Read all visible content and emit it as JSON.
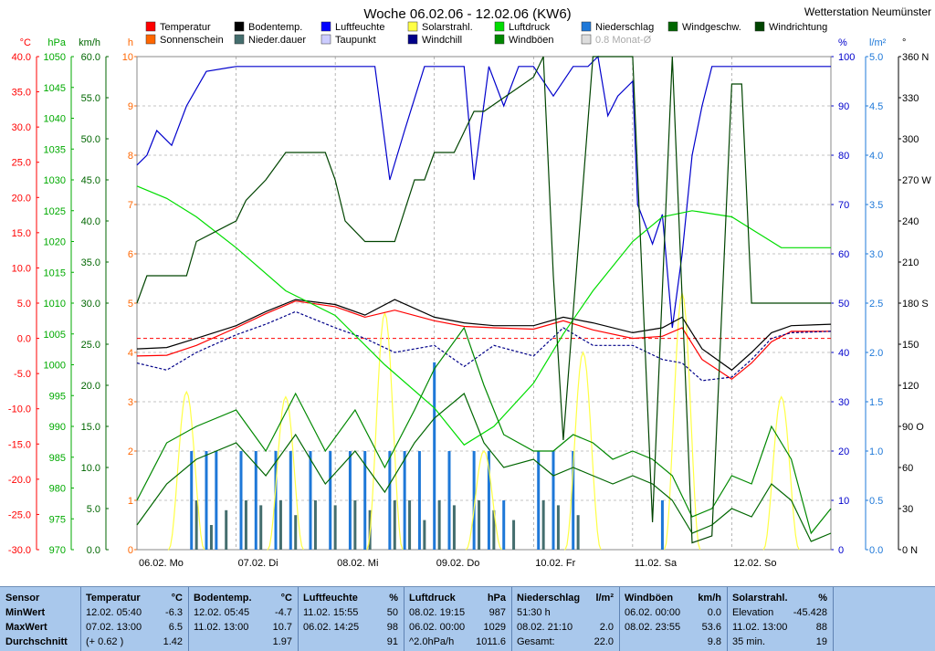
{
  "title": "Woche 06.02.06 - 12.02.06 (KW6)",
  "station": "Wetterstation Neumünster",
  "legend": [
    {
      "label": "Temperatur",
      "color": "#ff0000"
    },
    {
      "label": "Bodentemp.",
      "color": "#000000"
    },
    {
      "label": "Luftfeuchte",
      "color": "#0000ff"
    },
    {
      "label": "Solarstrahl.",
      "color": "#ffff44"
    },
    {
      "label": "Luftdruck",
      "color": "#00dd00"
    },
    {
      "label": "Niederschlag",
      "color": "#1e78d8"
    },
    {
      "label": "Windgeschw.",
      "color": "#006600"
    },
    {
      "label": "Windrichtung",
      "color": "#004400"
    },
    {
      "label": "Sonnenschein",
      "color": "#ff6600"
    },
    {
      "label": "Nieder.dauer",
      "color": "#446e6e"
    },
    {
      "label": "Taupunkt",
      "color": "#ccccff"
    },
    {
      "label": "Windchill",
      "color": "#000088"
    },
    {
      "label": "Windböen",
      "color": "#008800"
    },
    {
      "label": "0.8 Monat-Ø",
      "color": "#dddddd"
    }
  ],
  "axes": {
    "temp": {
      "unit": "°C",
      "color": "#ff0000",
      "ticks": [
        "40.0",
        "35.0",
        "30.0",
        "25.0",
        "20.0",
        "15.0",
        "10.0",
        "5.0",
        "0.0",
        "-5.0",
        "-10.0",
        "-15.0",
        "-20.0",
        "-25.0",
        "-30.0"
      ]
    },
    "pressure": {
      "unit": "hPa",
      "color": "#00aa00",
      "ticks": [
        "1050",
        "1045",
        "1040",
        "1035",
        "1030",
        "1025",
        "1020",
        "1015",
        "1010",
        "1005",
        "1000",
        "995",
        "990",
        "985",
        "980",
        "975",
        "970"
      ]
    },
    "wind": {
      "unit": "km/h",
      "color": "#006600",
      "ticks": [
        "60.0",
        "55.0",
        "50.0",
        "45.0",
        "40.0",
        "35.0",
        "30.0",
        "25.0",
        "20.0",
        "15.0",
        "10.0",
        "5.0",
        "0.0"
      ]
    },
    "hours": {
      "unit": "h",
      "color": "#ff6600",
      "ticks": [
        "10",
        "9",
        "8",
        "7",
        "6",
        "5",
        "4",
        "3",
        "2",
        "1",
        "0"
      ]
    },
    "humidity": {
      "unit": "%",
      "color": "#0000cc",
      "ticks": [
        "100",
        "90",
        "80",
        "70",
        "60",
        "50",
        "40",
        "30",
        "20",
        "10",
        "0"
      ]
    },
    "rain": {
      "unit": "l/m²",
      "color": "#1e78d8",
      "ticks": [
        "5.0",
        "4.5",
        "4.0",
        "3.5",
        "3.0",
        "2.5",
        "2.0",
        "1.5",
        "1.0",
        "0.5",
        "0.0"
      ]
    },
    "direction": {
      "unit": "°",
      "color": "#000000",
      "ticks": [
        "360 N",
        "330",
        "300",
        "270 W",
        "240",
        "210",
        "180 S",
        "150",
        "120",
        "90 O",
        "60",
        "30",
        "0 N"
      ]
    }
  },
  "day_labels": [
    "06.02. Mo",
    "07.02. Di",
    "08.02. Mi",
    "09.02. Do",
    "10.02. Fr",
    "11.02. Sa",
    "12.02. So"
  ],
  "chart_data": {
    "type": "line",
    "x_unit": "Tag (0 = 06.02. 00:00)",
    "series": [
      {
        "name": "Luftfeuchte",
        "axis": "humidity",
        "color": "#0000cc",
        "x": [
          0,
          0.1,
          0.2,
          0.35,
          0.5,
          0.7,
          1,
          2,
          2.4,
          2.55,
          2.7,
          2.9,
          3,
          3.3,
          3.4,
          3.55,
          3.7,
          3.85,
          4,
          4.2,
          4.4,
          4.55,
          4.65,
          4.75,
          4.85,
          5,
          5.05,
          5.2,
          5.3,
          5.4,
          5.5,
          5.6,
          5.7,
          5.8,
          6,
          6.5,
          7
        ],
        "y": [
          78,
          80,
          85,
          82,
          90,
          97,
          98,
          98,
          98,
          75,
          85,
          98,
          98,
          98,
          75,
          98,
          90,
          98,
          98,
          92,
          98,
          98,
          100,
          88,
          92,
          95,
          70,
          62,
          68,
          45,
          60,
          80,
          90,
          98,
          98,
          98,
          98
        ]
      },
      {
        "name": "Temperatur",
        "axis": "temp",
        "color": "#ff0000",
        "x": [
          0,
          0.3,
          0.6,
          1,
          1.3,
          1.6,
          2,
          2.3,
          2.6,
          3,
          3.3,
          3.6,
          4,
          4.3,
          4.6,
          5,
          5.3,
          5.5,
          5.7,
          6,
          6.2,
          6.4,
          6.6,
          7
        ],
        "y": [
          -2.5,
          -2.4,
          -1,
          1.5,
          3.5,
          5.3,
          4.5,
          3,
          4,
          2.5,
          1.7,
          1.5,
          1.3,
          2.5,
          1.2,
          0,
          0.3,
          1.5,
          -3,
          -5.8,
          -3.5,
          -0.5,
          1,
          1
        ]
      },
      {
        "name": "Bodentemp.",
        "axis": "temp",
        "color": "#000000",
        "x": [
          0,
          0.3,
          0.6,
          1,
          1.3,
          1.6,
          2,
          2.3,
          2.6,
          3,
          3.3,
          3.6,
          4,
          4.3,
          4.6,
          5,
          5.3,
          5.5,
          5.7,
          6,
          6.2,
          6.4,
          6.6,
          7
        ],
        "y": [
          -1.5,
          -1.3,
          0,
          1.8,
          3.8,
          5.5,
          4.8,
          3.3,
          5.5,
          3,
          2.2,
          1.8,
          1.8,
          3,
          2.2,
          0.8,
          1.5,
          3,
          -1.5,
          -4.5,
          -2,
          0.8,
          1.8,
          2
        ]
      },
      {
        "name": "Windchill",
        "axis": "temp",
        "color": "#000088",
        "x": [
          0,
          0.3,
          0.6,
          1,
          1.3,
          1.6,
          2,
          2.3,
          2.6,
          3,
          3.3,
          3.6,
          4,
          4.3,
          4.6,
          5,
          5.3,
          5.5,
          5.7,
          6,
          6.2,
          6.4,
          6.6,
          7
        ],
        "y": [
          -3.5,
          -4.5,
          -2,
          0.5,
          2,
          3.8,
          1.5,
          0,
          -2,
          -1,
          -4,
          -1,
          -2.5,
          1.5,
          -1,
          -1,
          -3,
          -3.5,
          -6,
          -5.5,
          -3,
          0,
          0.8,
          1
        ]
      },
      {
        "name": "Luftdruck",
        "axis": "pressure",
        "color": "#00dd00",
        "x": [
          0,
          0.3,
          0.6,
          1,
          1.5,
          2,
          2.5,
          3,
          3.3,
          3.6,
          4,
          4.3,
          4.6,
          5,
          5.3,
          5.6,
          6,
          6.3,
          6.5,
          7
        ],
        "y": [
          1029,
          1027,
          1024,
          1019,
          1012,
          1008,
          1000,
          993,
          987,
          990,
          997,
          1005,
          1012,
          1020,
          1024,
          1025,
          1024,
          1021,
          1019,
          1019
        ]
      },
      {
        "name": "Windgeschw.",
        "axis": "wind",
        "color": "#006600",
        "x": [
          0,
          0.3,
          0.6,
          1,
          1.3,
          1.6,
          1.9,
          2.2,
          2.5,
          2.8,
          3,
          3.3,
          3.5,
          3.7,
          4,
          4.2,
          4.4,
          4.6,
          4.8,
          5,
          5.2,
          5.4,
          5.6,
          5.8,
          6,
          6.2,
          6.4,
          6.6,
          6.8,
          7
        ],
        "y": [
          3,
          8,
          11,
          13,
          9,
          14,
          8,
          12,
          7,
          13,
          16,
          19,
          13,
          10,
          11,
          9,
          10,
          9,
          8,
          9,
          8,
          6,
          2,
          3,
          5,
          4,
          8,
          6,
          1,
          2
        ]
      },
      {
        "name": "Windböen",
        "axis": "wind",
        "color": "#008800",
        "x": [
          0,
          0.3,
          0.6,
          1,
          1.3,
          1.6,
          1.9,
          2.2,
          2.5,
          2.8,
          3,
          3.3,
          3.5,
          3.7,
          4,
          4.2,
          4.4,
          4.6,
          4.8,
          5,
          5.2,
          5.4,
          5.6,
          5.8,
          6,
          6.2,
          6.4,
          6.6,
          6.8,
          7
        ],
        "y": [
          6,
          13,
          15,
          17,
          12,
          19,
          12,
          17,
          10,
          17,
          22,
          27,
          20,
          14,
          12,
          12,
          14,
          13,
          11,
          12,
          11,
          9,
          4,
          5,
          9,
          8,
          15,
          11,
          2,
          5
        ]
      },
      {
        "name": "Windrichtung",
        "axis": "direction",
        "color": "#004400",
        "x": [
          0,
          0.1,
          0.5,
          0.6,
          1,
          1.1,
          1.3,
          1.5,
          1.9,
          2,
          2.1,
          2.3,
          2.6,
          2.8,
          2.9,
          3,
          3.2,
          3.4,
          3.5,
          3.7,
          4,
          4.1,
          4.2,
          4.3,
          4.6,
          5,
          5.2,
          5.4,
          5.6,
          5.8,
          6,
          6.1,
          6.2,
          6.4,
          6.6,
          6.8,
          7
        ],
        "y": [
          180,
          200,
          200,
          225,
          240,
          255,
          270,
          290,
          290,
          270,
          240,
          225,
          225,
          270,
          270,
          290,
          290,
          320,
          320,
          330,
          345,
          360,
          200,
          80,
          360,
          360,
          20,
          360,
          5,
          10,
          340,
          340,
          180,
          180,
          180,
          180,
          180
        ]
      }
    ],
    "bars": [
      {
        "name": "Niederschlag",
        "axis": "rain",
        "color": "#1e78d8",
        "x": [
          0.55,
          0.7,
          0.8,
          1.05,
          1.2,
          1.4,
          1.55,
          1.75,
          1.95,
          2.15,
          2.3,
          2.55,
          2.7,
          2.85,
          3.0,
          3.15,
          3.4,
          3.55,
          3.7,
          4.05,
          4.2,
          4.4,
          5.3
        ],
        "y": [
          1.0,
          1.0,
          1.0,
          1.0,
          1.0,
          1.0,
          1.0,
          1.0,
          1.0,
          1.0,
          1.0,
          1.0,
          1.0,
          1.0,
          1.9,
          1.0,
          1.0,
          1.0,
          0.5,
          1.0,
          1.0,
          1.0,
          0.5
        ]
      },
      {
        "name": "Nieder.dauer",
        "axis": "hours",
        "color": "#446e6e",
        "x": [
          0.6,
          0.75,
          0.9,
          1.1,
          1.25,
          1.45,
          1.6,
          1.8,
          2.0,
          2.2,
          2.35,
          2.6,
          2.75,
          2.9,
          3.05,
          3.2,
          3.45,
          3.6,
          3.8,
          4.1,
          4.25,
          4.45
        ],
        "y": [
          1,
          0.5,
          0.8,
          1,
          0.9,
          1,
          0.7,
          1,
          0.9,
          1,
          0.8,
          1,
          1,
          0.6,
          1,
          0.9,
          1,
          0.8,
          0.6,
          1,
          0.9,
          0.7
        ]
      }
    ],
    "solar": {
      "name": "Solarstrahl.",
      "axis": "humidity",
      "color": "#ffff44",
      "peaks_x": [
        0.5,
        1.5,
        2.5,
        3.5,
        4.5,
        5.5,
        6.5
      ],
      "peaks_y": [
        32,
        31,
        48,
        20,
        40,
        52,
        31
      ]
    },
    "zero_line": {
      "axis": "temp",
      "value": 0
    }
  },
  "stats": {
    "row_labels": [
      "Sensor",
      "MinWert",
      "MaxWert",
      "Durchschnitt"
    ],
    "columns": [
      {
        "name": "Temperatur",
        "unit": "°C",
        "rows": [
          [
            "12.02.  05:40",
            "-6.3"
          ],
          [
            "07.02.  13:00",
            "6.5"
          ],
          [
            "(+ 0.62 )",
            "1.42"
          ]
        ]
      },
      {
        "name": "Bodentemp.",
        "unit": "°C",
        "rows": [
          [
            "12.02.  05:45",
            "-4.7"
          ],
          [
            "11.02.  13:00",
            "10.7"
          ],
          [
            "",
            "1.97"
          ]
        ]
      },
      {
        "name": "Luftfeuchte",
        "unit": "%",
        "rows": [
          [
            "11.02.  15:55",
            "50"
          ],
          [
            "06.02.  14:25",
            "98"
          ],
          [
            "",
            "91"
          ]
        ]
      },
      {
        "name": "Luftdruck",
        "unit": "hPa",
        "rows": [
          [
            "08.02.  19:15",
            "987"
          ],
          [
            "06.02.  00:00",
            "1029"
          ],
          [
            "^2.0hPa/h",
            "1011.6"
          ]
        ]
      },
      {
        "name": "Niederschlag",
        "unit": "l/m²",
        "rows": [
          [
            "51:30 h",
            ""
          ],
          [
            "08.02.  21:10",
            "2.0"
          ],
          [
            "Gesamt:",
            "22.0"
          ]
        ]
      },
      {
        "name": "Windböen",
        "unit": "km/h",
        "rows": [
          [
            "06.02.  00:00",
            "0.0"
          ],
          [
            "08.02.  23:55",
            "53.6"
          ],
          [
            "",
            "9.8"
          ]
        ]
      },
      {
        "name": "Solarstrahl.",
        "unit": "%",
        "rows": [
          [
            "Elevation",
            "-45.428"
          ],
          [
            "11.02.  13:00",
            "88"
          ],
          [
            "35 min.",
            "19"
          ]
        ]
      }
    ]
  }
}
